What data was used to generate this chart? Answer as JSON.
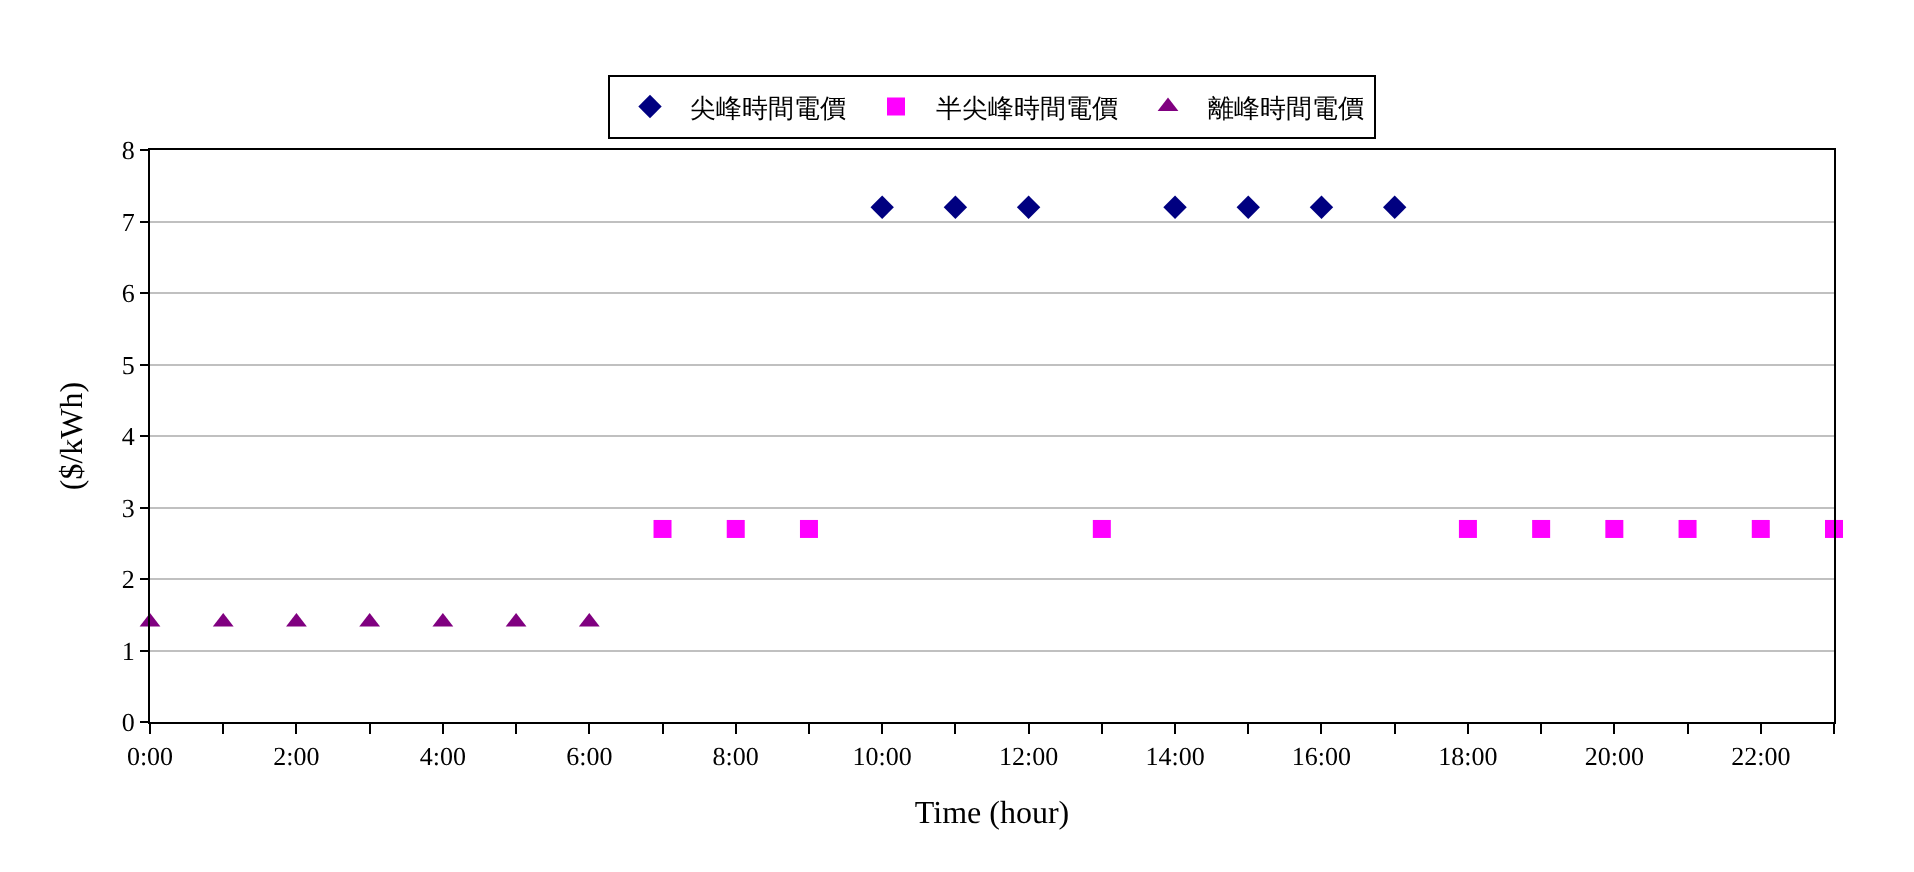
{
  "chart_data": {
    "type": "scatter",
    "xlabel": "Time (hour)",
    "ylabel": "($/kWh)",
    "series": [
      {
        "name": "尖峰時間電價",
        "color": "#000080",
        "marker": "diamond",
        "x": [
          10,
          11,
          12,
          14,
          15,
          16,
          17
        ],
        "values": [
          7.2,
          7.2,
          7.2,
          7.2,
          7.2,
          7.2,
          7.2
        ]
      },
      {
        "name": "半尖峰時間電價",
        "color": "#ff00ff",
        "marker": "square",
        "x": [
          7,
          8,
          9,
          13,
          18,
          19,
          20,
          21,
          22,
          23
        ],
        "values": [
          2.7,
          2.7,
          2.7,
          2.7,
          2.7,
          2.7,
          2.7,
          2.7,
          2.7,
          2.7
        ]
      },
      {
        "name": "離峰時間電價",
        "color": "#800080",
        "marker": "triangle",
        "x": [
          0,
          1,
          2,
          3,
          4,
          5,
          6
        ],
        "values": [
          1.4,
          1.4,
          1.4,
          1.4,
          1.4,
          1.4,
          1.4
        ]
      }
    ],
    "xlim": [
      0,
      23
    ],
    "xticks": [
      {
        "value": 0,
        "label": "0:00"
      },
      {
        "value": 1,
        "label": null
      },
      {
        "value": 2,
        "label": "2:00"
      },
      {
        "value": 3,
        "label": null
      },
      {
        "value": 4,
        "label": "4:00"
      },
      {
        "value": 5,
        "label": null
      },
      {
        "value": 6,
        "label": "6:00"
      },
      {
        "value": 7,
        "label": null
      },
      {
        "value": 8,
        "label": "8:00"
      },
      {
        "value": 9,
        "label": null
      },
      {
        "value": 10,
        "label": "10:00"
      },
      {
        "value": 11,
        "label": null
      },
      {
        "value": 12,
        "label": "12:00"
      },
      {
        "value": 13,
        "label": null
      },
      {
        "value": 14,
        "label": "14:00"
      },
      {
        "value": 15,
        "label": null
      },
      {
        "value": 16,
        "label": "16:00"
      },
      {
        "value": 17,
        "label": null
      },
      {
        "value": 18,
        "label": "18:00"
      },
      {
        "value": 19,
        "label": null
      },
      {
        "value": 20,
        "label": "20:00"
      },
      {
        "value": 21,
        "label": null
      },
      {
        "value": 22,
        "label": "22:00"
      },
      {
        "value": 23,
        "label": null
      }
    ],
    "ylim": [
      0,
      8
    ],
    "yticks": [
      0,
      1,
      2,
      3,
      4,
      5,
      6,
      7,
      8
    ],
    "grid": "y",
    "legend": "top"
  }
}
